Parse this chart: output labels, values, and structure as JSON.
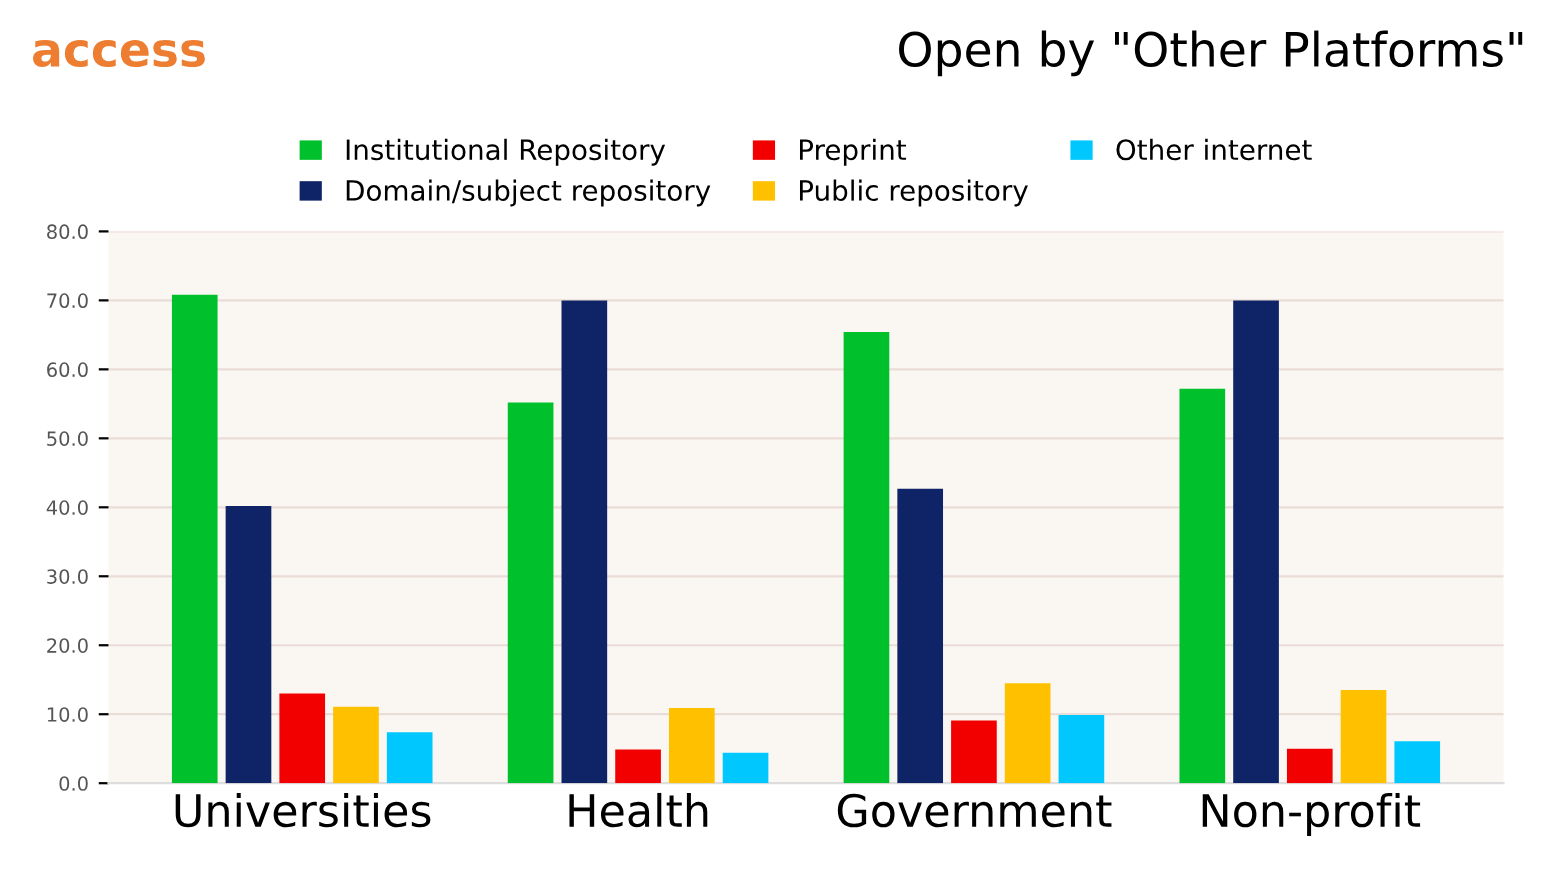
{
  "chart_data": {
    "type": "bar",
    "title": "Open by \"Other Platforms\"",
    "annotations": [
      "access"
    ],
    "categories": [
      "Universities",
      "Health",
      "Government",
      "Non-profit"
    ],
    "series": [
      {
        "name": "Institutional Repository",
        "color": "#00c12b",
        "values": [
          70.8,
          55.2,
          65.4,
          57.2
        ]
      },
      {
        "name": "Domain/subject repository",
        "color": "#0e2466",
        "values": [
          40.2,
          70,
          42.7,
          70
        ]
      },
      {
        "name": "Preprint",
        "color": "#f20000",
        "values": [
          13.0,
          4.9,
          9.1,
          5.0
        ]
      },
      {
        "name": "Public repository",
        "color": "#ffc000",
        "values": [
          11.1,
          10.9,
          14.5,
          13.5
        ]
      },
      {
        "name": "Other internet",
        "color": "#00c8ff",
        "values": [
          7.4,
          4.4,
          9.9,
          6.1
        ]
      }
    ],
    "ylim": [
      0,
      80
    ],
    "yticks": [
      {
        "value": 0,
        "label": "0.0"
      },
      {
        "value": 10,
        "label": "10.0"
      },
      {
        "value": 20,
        "label": "20.0"
      },
      {
        "value": 30,
        "label": "30.0"
      },
      {
        "value": 40,
        "label": "40.0"
      },
      {
        "value": 50,
        "label": "50.0"
      },
      {
        "value": 60,
        "label": "60.0"
      },
      {
        "value": 70,
        "label": "70.0"
      },
      {
        "value": 80,
        "label": "80.0"
      }
    ],
    "grid": "y",
    "legend": "top"
  }
}
